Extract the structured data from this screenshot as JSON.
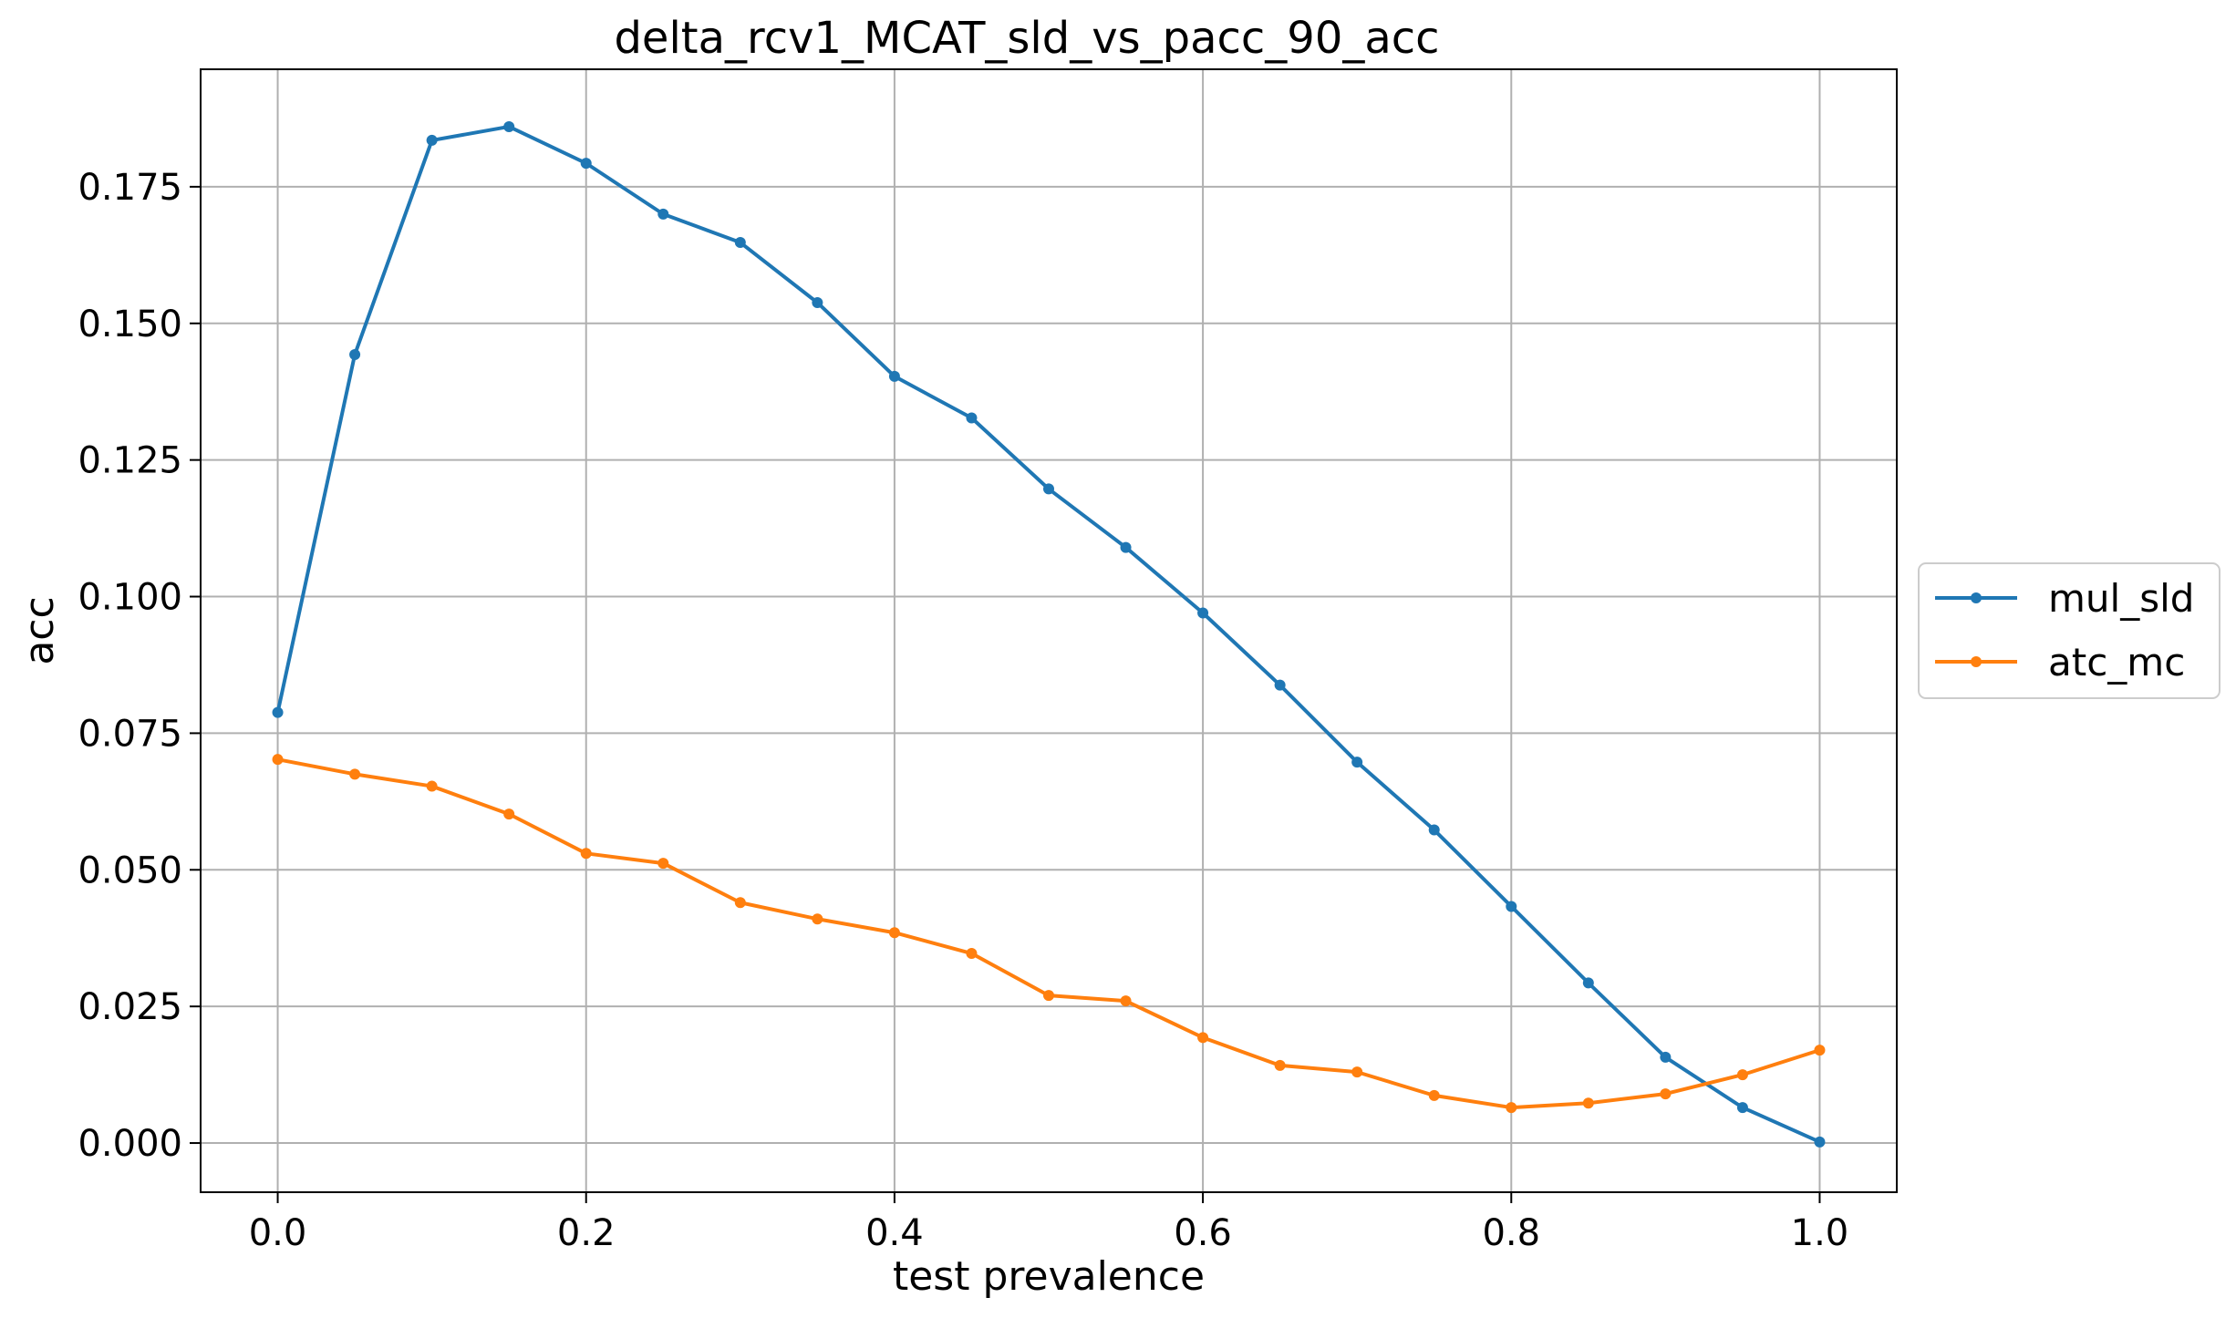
{
  "chart_data": {
    "type": "line",
    "title": "delta_rcv1_MCAT_sld_vs_pacc_90_acc",
    "xlabel": "test prevalence",
    "ylabel": "acc",
    "xlim": [
      -0.05,
      1.05
    ],
    "ylim": [
      -0.009,
      0.1965
    ],
    "grid": true,
    "legend_position": "right-outside",
    "x_ticks": [
      0.0,
      0.2,
      0.4,
      0.6,
      0.8,
      1.0
    ],
    "x_tick_labels": [
      "0.0",
      "0.2",
      "0.4",
      "0.6",
      "0.8",
      "1.0"
    ],
    "y_ticks": [
      0.0,
      0.025,
      0.05,
      0.075,
      0.1,
      0.125,
      0.15,
      0.175
    ],
    "y_tick_labels": [
      "0.000",
      "0.025",
      "0.050",
      "0.075",
      "0.100",
      "0.125",
      "0.150",
      "0.175"
    ],
    "x": [
      0.0,
      0.05,
      0.1,
      0.15,
      0.2,
      0.25,
      0.3,
      0.35,
      0.4,
      0.45,
      0.5,
      0.55,
      0.6,
      0.65,
      0.7,
      0.75,
      0.8,
      0.85,
      0.9,
      0.95,
      1.0
    ],
    "series": [
      {
        "name": "mul_sld",
        "color": "#1f77b4",
        "values": [
          0.0788,
          0.1443,
          0.1835,
          0.186,
          0.1793,
          0.17,
          0.1648,
          0.1538,
          0.1403,
          0.1327,
          0.1197,
          0.109,
          0.097,
          0.0838,
          0.0697,
          0.0573,
          0.0433,
          0.0293,
          0.0157,
          0.0065,
          0.0002
        ]
      },
      {
        "name": "atc_mc",
        "color": "#ff7f0e",
        "values": [
          0.0702,
          0.0675,
          0.0653,
          0.0602,
          0.053,
          0.0512,
          0.044,
          0.041,
          0.0385,
          0.0347,
          0.027,
          0.026,
          0.0193,
          0.0142,
          0.013,
          0.0087,
          0.0065,
          0.0073,
          0.009,
          0.0125,
          0.017
        ]
      }
    ]
  }
}
